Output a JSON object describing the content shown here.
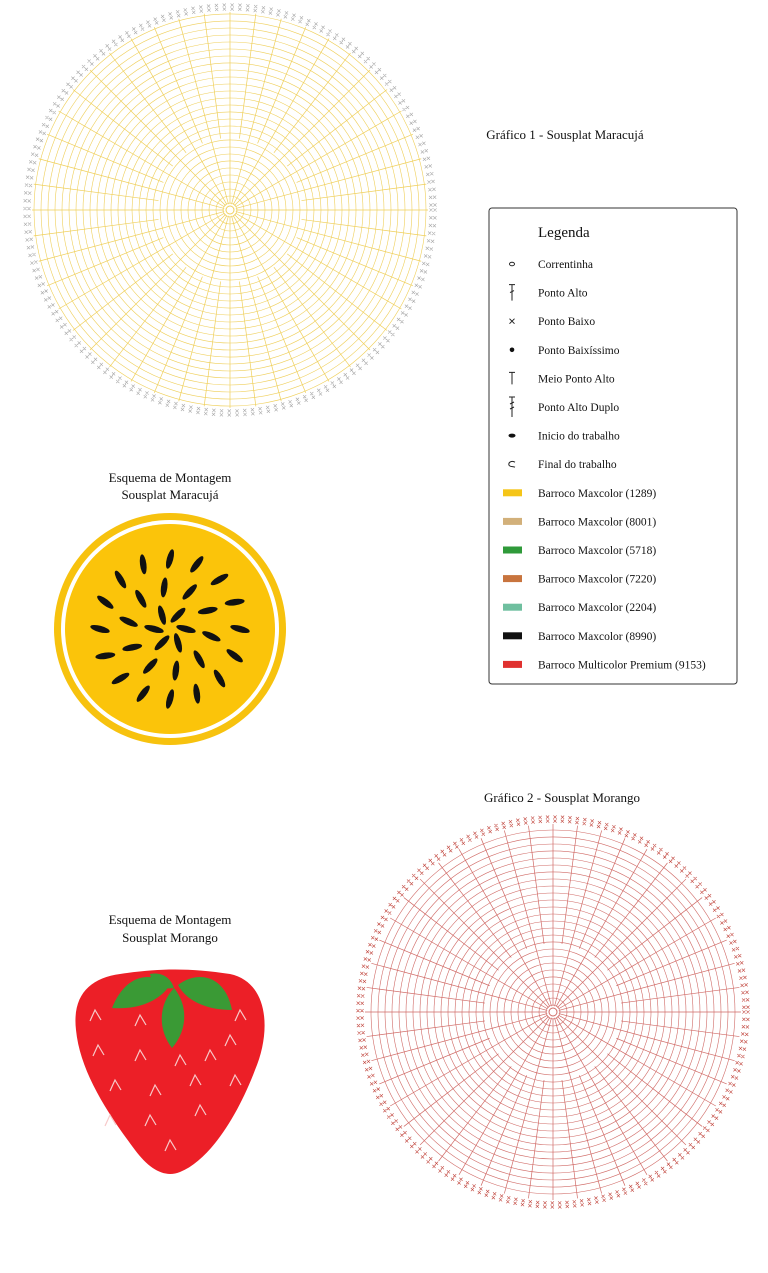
{
  "chart1": {
    "title": "Gráfico 1 - Sousplat Maracujá"
  },
  "assembly1": {
    "title": "Esquema de Montagem",
    "subtitle": "Sousplat Maracujá"
  },
  "legend": {
    "title": "Legenda",
    "items": [
      {
        "symbol": "chain",
        "label": "Correntinha"
      },
      {
        "symbol": "dc",
        "label": "Ponto Alto"
      },
      {
        "symbol": "sc",
        "label": "Ponto Baixo"
      },
      {
        "symbol": "slst",
        "label": "Ponto Baixíssimo"
      },
      {
        "symbol": "hdc",
        "label": "Meio Ponto Alto"
      },
      {
        "symbol": "tr",
        "label": "Ponto Alto Duplo"
      },
      {
        "symbol": "start",
        "label": "Inicio do trabalho"
      },
      {
        "symbol": "end",
        "label": "Final do trabalho"
      },
      {
        "symbol": "swatch",
        "color": "#f5c518",
        "label": "Barroco Maxcolor (1289)"
      },
      {
        "symbol": "swatch",
        "color": "#d2b07a",
        "label": "Barroco Maxcolor (8001)"
      },
      {
        "symbol": "swatch",
        "color": "#2f9a3a",
        "label": "Barroco Maxcolor (5718)"
      },
      {
        "symbol": "swatch",
        "color": "#c8743e",
        "label": "Barroco Maxcolor (7220)"
      },
      {
        "symbol": "swatch",
        "color": "#6fbf9f",
        "label": "Barroco Maxcolor (2204)"
      },
      {
        "symbol": "swatch",
        "color": "#111111",
        "label": "Barroco Maxcolor (8990)"
      },
      {
        "symbol": "swatch",
        "color": "#e0312f",
        "label": "Barroco Multicolor Premium (9153)"
      }
    ]
  },
  "chart2": {
    "title": "Gráfico 2 - Sousplat Morango"
  },
  "assembly2": {
    "title": "Esquema de Montagem",
    "subtitle": "Sousplat Morango"
  }
}
